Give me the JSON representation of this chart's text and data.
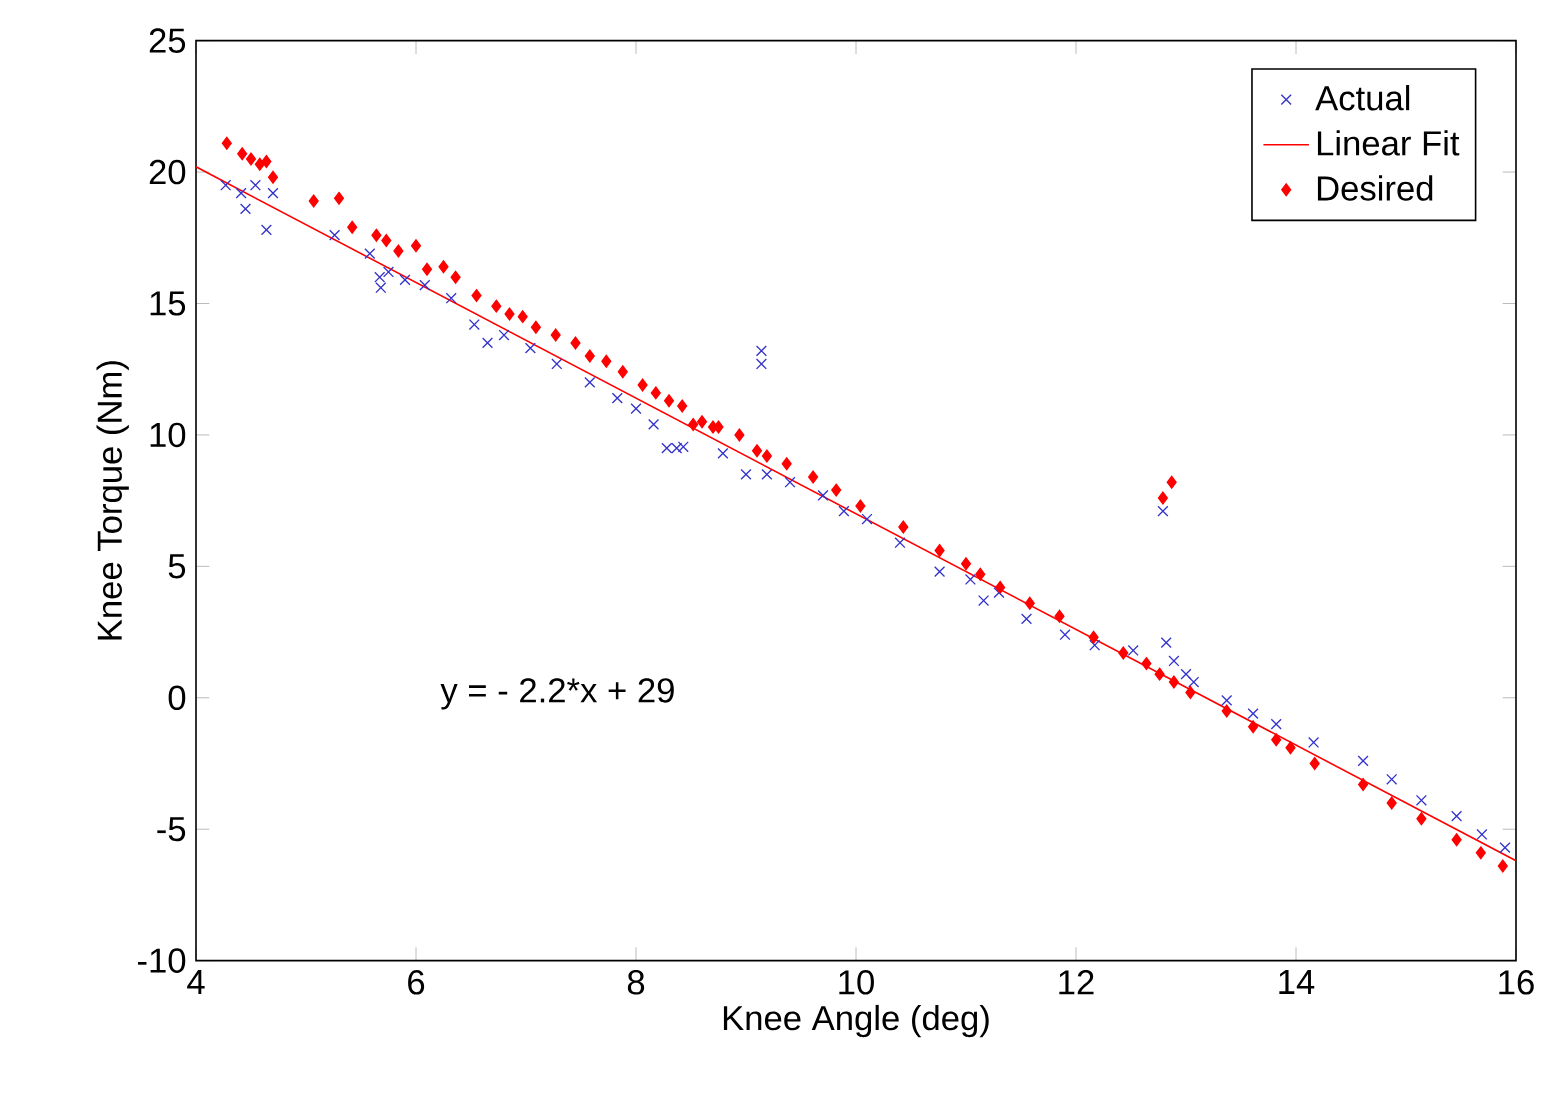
{
  "chart_data": {
    "type": "scatter",
    "xlabel": "Knee Angle (deg)",
    "ylabel": "Knee Torque (Nm)",
    "annotations": [
      "y = - 2.2*x + 29"
    ],
    "xlim": [
      4,
      16
    ],
    "ylim": [
      -10,
      25
    ],
    "xticks": [
      4,
      6,
      8,
      10,
      12,
      14,
      16
    ],
    "yticks": [
      -10,
      -5,
      0,
      5,
      10,
      15,
      20,
      25
    ],
    "grid": false,
    "legend": "top right",
    "series": [
      {
        "name": "Actual",
        "marker": "cross",
        "color": "#3333cc",
        "x": [
          4.27,
          4.41,
          4.45,
          4.54,
          4.64,
          4.7,
          5.26,
          5.58,
          5.67,
          5.68,
          5.75,
          5.9,
          6.08,
          6.32,
          6.53,
          6.65,
          6.8,
          7.04,
          7.28,
          7.58,
          7.83,
          8.0,
          8.16,
          8.28,
          8.37,
          8.43,
          8.79,
          9.0,
          9.19,
          9.14,
          9.14,
          9.4,
          9.7,
          9.89,
          10.1,
          10.4,
          10.76,
          11.04,
          11.16,
          11.3,
          11.55,
          11.9,
          12.17,
          12.52,
          12.79,
          12.82,
          12.89,
          13.0,
          13.07,
          13.37,
          13.61,
          13.82,
          14.16,
          14.61,
          14.87,
          15.14,
          15.46,
          15.69,
          15.9
        ],
        "values": [
          19.5,
          19.2,
          18.6,
          19.5,
          17.8,
          19.2,
          17.6,
          16.9,
          16.0,
          15.6,
          16.2,
          15.9,
          15.7,
          15.2,
          14.2,
          13.5,
          13.8,
          13.3,
          12.7,
          12.0,
          11.4,
          11.0,
          10.4,
          9.5,
          9.5,
          9.55,
          9.3,
          8.5,
          8.5,
          13.2,
          12.7,
          8.2,
          7.7,
          7.1,
          6.8,
          5.9,
          4.8,
          4.5,
          3.7,
          4.0,
          3.0,
          2.4,
          2.0,
          1.8,
          7.1,
          2.1,
          1.4,
          0.9,
          0.6,
          -0.1,
          -0.6,
          -1.0,
          -1.7,
          -2.4,
          -3.1,
          -3.9,
          -4.5,
          -5.2,
          -5.7
        ]
      },
      {
        "name": "Linear Fit",
        "type": "line",
        "marker": "none",
        "line_style": "solid",
        "color": "#ff0000",
        "x": [
          4,
          16
        ],
        "values": [
          20.2,
          -6.2
        ]
      },
      {
        "name": "Desired",
        "marker": "diamond",
        "color": "#ff0000",
        "x": [
          4.28,
          4.42,
          4.5,
          4.58,
          4.64,
          4.7,
          5.07,
          5.3,
          5.42,
          5.64,
          5.73,
          5.84,
          6.0,
          6.1,
          6.25,
          6.36,
          6.55,
          6.73,
          6.85,
          6.97,
          7.09,
          7.27,
          7.45,
          7.58,
          7.73,
          7.88,
          8.06,
          8.18,
          8.3,
          8.42,
          8.52,
          8.6,
          8.7,
          8.75,
          8.94,
          9.1,
          9.19,
          9.37,
          9.61,
          9.82,
          10.04,
          10.43,
          10.76,
          11.0,
          11.13,
          11.31,
          11.58,
          11.85,
          12.16,
          12.43,
          12.64,
          12.76,
          12.79,
          12.87,
          12.89,
          13.04,
          13.37,
          13.61,
          13.82,
          13.95,
          14.17,
          14.61,
          14.87,
          15.14,
          15.46,
          15.68,
          15.88
        ],
        "values": [
          21.1,
          20.7,
          20.5,
          20.3,
          20.4,
          19.8,
          18.9,
          19.0,
          17.9,
          17.6,
          17.4,
          17.0,
          17.2,
          16.3,
          16.4,
          16.0,
          15.3,
          14.9,
          14.6,
          14.5,
          14.1,
          13.8,
          13.5,
          13.0,
          12.8,
          12.4,
          11.9,
          11.6,
          11.3,
          11.1,
          10.4,
          10.5,
          10.3,
          10.3,
          10.0,
          9.4,
          9.2,
          8.9,
          8.4,
          7.9,
          7.3,
          6.5,
          5.6,
          5.1,
          4.7,
          4.2,
          3.6,
          3.1,
          2.3,
          1.7,
          1.3,
          0.9,
          7.6,
          8.2,
          0.6,
          0.2,
          -0.5,
          -1.1,
          -1.6,
          -1.9,
          -2.5,
          -3.3,
          -4.0,
          -4.6,
          -5.4,
          -5.9,
          -6.4
        ]
      }
    ]
  }
}
